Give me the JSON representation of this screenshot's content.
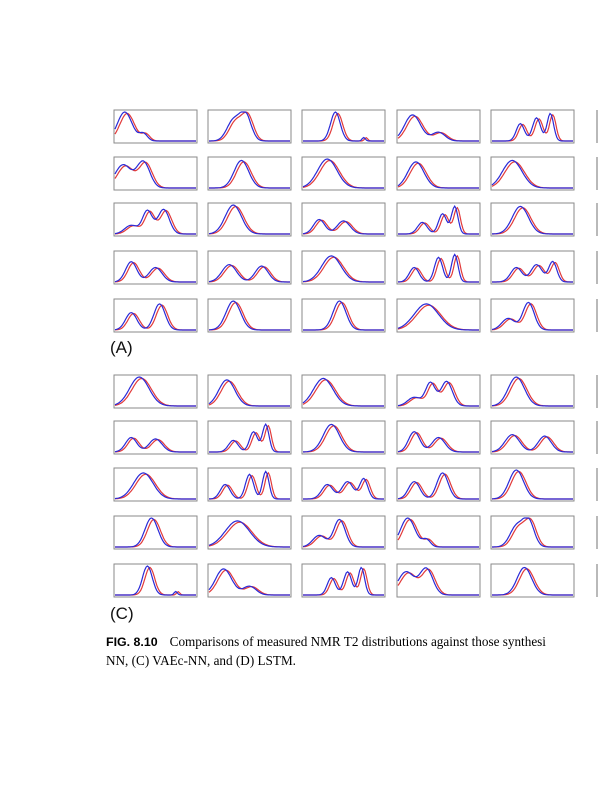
{
  "panels": [
    {
      "label": "(A)",
      "rows": 5,
      "cols": 5
    },
    {
      "label": "(C)",
      "rows": 5,
      "cols": 5
    }
  ],
  "series_colors": {
    "measured": "#2a2ad8",
    "synthesized": "#e23a3a"
  },
  "frame_color": "#8a8a8a",
  "caption": {
    "number": "FIG. 8.10",
    "line1": "Comparisons of measured NMR T2 distributions against those synthesi",
    "line2": "NN, (C) VAEc-NN, and (D) LSTM."
  }
}
